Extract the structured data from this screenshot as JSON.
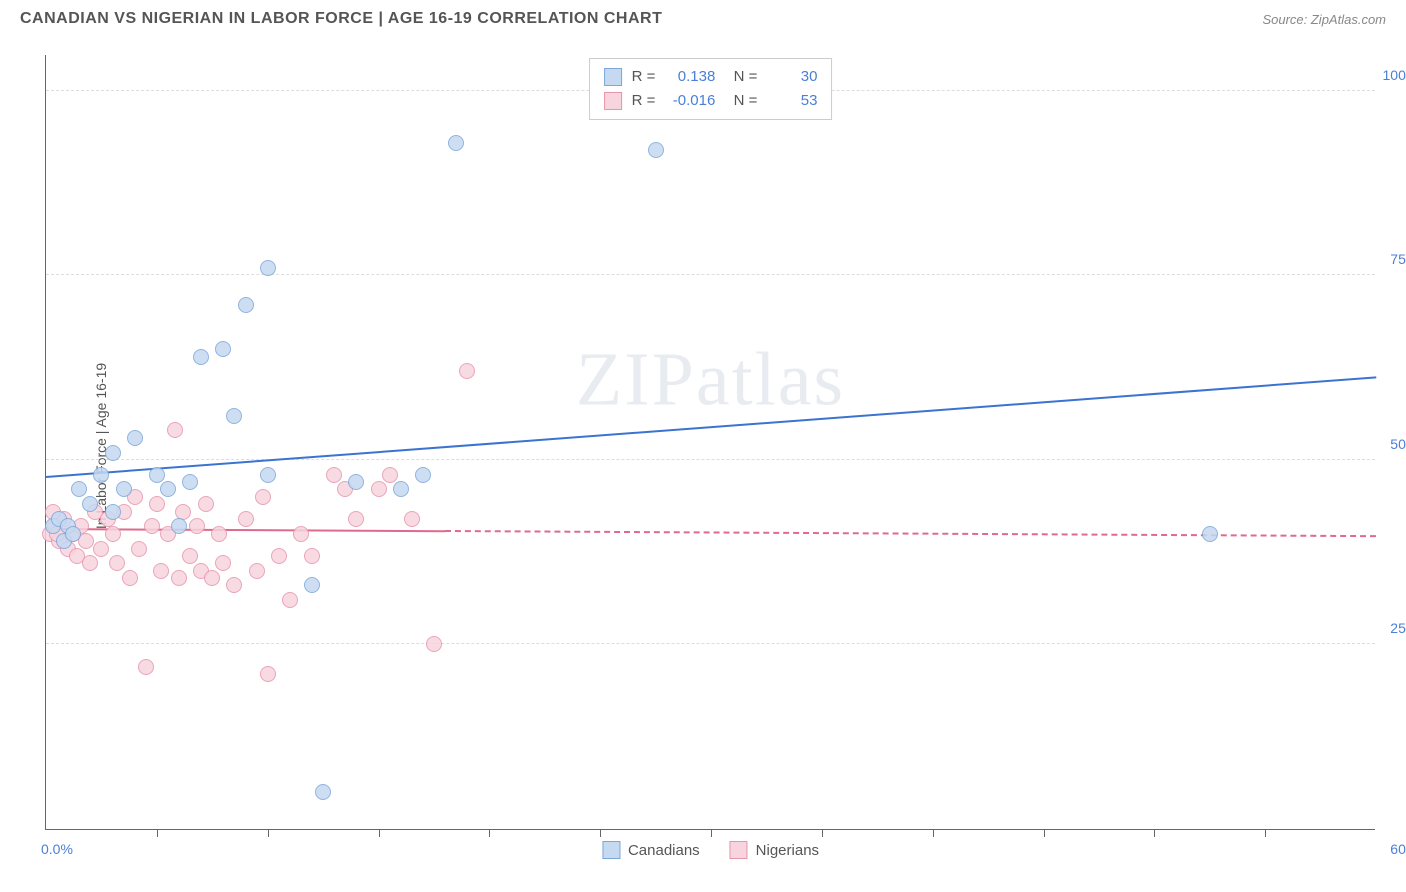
{
  "header": {
    "title": "CANADIAN VS NIGERIAN IN LABOR FORCE | AGE 16-19 CORRELATION CHART",
    "source": "Source: ZipAtlas.com"
  },
  "watermark": "ZIPatlas",
  "chart": {
    "type": "scatter",
    "ylabel": "In Labor Force | Age 16-19",
    "xlim": [
      0,
      60
    ],
    "ylim": [
      0,
      105
    ],
    "xticks": [
      5,
      10,
      15,
      20,
      25,
      30,
      35,
      40,
      45,
      50,
      55
    ],
    "yticks": [
      {
        "v": 25,
        "label": "25.0%"
      },
      {
        "v": 50,
        "label": "50.0%"
      },
      {
        "v": 75,
        "label": "75.0%"
      },
      {
        "v": 100,
        "label": "100.0%"
      }
    ],
    "xaxis_label_left": "0.0%",
    "xaxis_label_right": "60.0%",
    "background_color": "#ffffff",
    "grid_color": "#dddddd",
    "series": [
      {
        "name": "Canadians",
        "fill": "#c5d9f1",
        "stroke": "#7da7db",
        "marker_r": 8,
        "R": "0.138",
        "N": "30",
        "trend": {
          "x0": 0,
          "y0": 47.5,
          "x1": 60,
          "y1": 61,
          "solid_until": 60,
          "color": "#3a74d0"
        },
        "points": [
          {
            "x": 0.3,
            "y": 41
          },
          {
            "x": 0.6,
            "y": 42
          },
          {
            "x": 0.8,
            "y": 39
          },
          {
            "x": 1.0,
            "y": 41
          },
          {
            "x": 1.2,
            "y": 40
          },
          {
            "x": 1.5,
            "y": 46
          },
          {
            "x": 2.0,
            "y": 44
          },
          {
            "x": 2.5,
            "y": 48
          },
          {
            "x": 3.0,
            "y": 51
          },
          {
            "x": 3.5,
            "y": 46
          },
          {
            "x": 4.0,
            "y": 53
          },
          {
            "x": 3.0,
            "y": 43
          },
          {
            "x": 5.0,
            "y": 48
          },
          {
            "x": 5.5,
            "y": 46
          },
          {
            "x": 6.0,
            "y": 41
          },
          {
            "x": 6.5,
            "y": 47
          },
          {
            "x": 7.0,
            "y": 64
          },
          {
            "x": 8.0,
            "y": 65
          },
          {
            "x": 8.5,
            "y": 56
          },
          {
            "x": 9.0,
            "y": 71
          },
          {
            "x": 10.0,
            "y": 76
          },
          {
            "x": 10.0,
            "y": 48
          },
          {
            "x": 12.0,
            "y": 33
          },
          {
            "x": 12.5,
            "y": 5
          },
          {
            "x": 14.0,
            "y": 47
          },
          {
            "x": 16.0,
            "y": 46
          },
          {
            "x": 17.0,
            "y": 48
          },
          {
            "x": 18.5,
            "y": 93
          },
          {
            "x": 27.5,
            "y": 92
          },
          {
            "x": 52.5,
            "y": 40
          }
        ]
      },
      {
        "name": "Nigerians",
        "fill": "#f7d4de",
        "stroke": "#e795ad",
        "marker_r": 8,
        "R": "-0.016",
        "N": "53",
        "trend": {
          "x0": 0,
          "y0": 40.5,
          "x1": 60,
          "y1": 39.5,
          "solid_until": 18,
          "color": "#e06a8d"
        },
        "points": [
          {
            "x": 0.2,
            "y": 40
          },
          {
            "x": 0.4,
            "y": 41
          },
          {
            "x": 0.6,
            "y": 39
          },
          {
            "x": 0.8,
            "y": 42
          },
          {
            "x": 1.0,
            "y": 38
          },
          {
            "x": 1.2,
            "y": 40
          },
          {
            "x": 1.4,
            "y": 37
          },
          {
            "x": 1.6,
            "y": 41
          },
          {
            "x": 1.8,
            "y": 39
          },
          {
            "x": 2.0,
            "y": 36
          },
          {
            "x": 2.2,
            "y": 43
          },
          {
            "x": 2.5,
            "y": 38
          },
          {
            "x": 2.8,
            "y": 42
          },
          {
            "x": 3.0,
            "y": 40
          },
          {
            "x": 3.2,
            "y": 36
          },
          {
            "x": 3.5,
            "y": 43
          },
          {
            "x": 3.8,
            "y": 34
          },
          {
            "x": 4.0,
            "y": 45
          },
          {
            "x": 4.2,
            "y": 38
          },
          {
            "x": 4.5,
            "y": 22
          },
          {
            "x": 4.8,
            "y": 41
          },
          {
            "x": 5.0,
            "y": 44
          },
          {
            "x": 5.2,
            "y": 35
          },
          {
            "x": 5.5,
            "y": 40
          },
          {
            "x": 5.8,
            "y": 54
          },
          {
            "x": 6.0,
            "y": 34
          },
          {
            "x": 6.2,
            "y": 43
          },
          {
            "x": 6.5,
            "y": 37
          },
          {
            "x": 6.8,
            "y": 41
          },
          {
            "x": 7.0,
            "y": 35
          },
          {
            "x": 7.2,
            "y": 44
          },
          {
            "x": 7.5,
            "y": 34
          },
          {
            "x": 7.8,
            "y": 40
          },
          {
            "x": 8.0,
            "y": 36
          },
          {
            "x": 8.5,
            "y": 33
          },
          {
            "x": 9.0,
            "y": 42
          },
          {
            "x": 9.5,
            "y": 35
          },
          {
            "x": 9.8,
            "y": 45
          },
          {
            "x": 10.0,
            "y": 21
          },
          {
            "x": 10.5,
            "y": 37
          },
          {
            "x": 11.0,
            "y": 31
          },
          {
            "x": 11.5,
            "y": 40
          },
          {
            "x": 12.0,
            "y": 37
          },
          {
            "x": 13.0,
            "y": 48
          },
          {
            "x": 13.5,
            "y": 46
          },
          {
            "x": 14.0,
            "y": 42
          },
          {
            "x": 15.0,
            "y": 46
          },
          {
            "x": 15.5,
            "y": 48
          },
          {
            "x": 16.5,
            "y": 42
          },
          {
            "x": 17.5,
            "y": 25
          },
          {
            "x": 19.0,
            "y": 62
          },
          {
            "x": 0.3,
            "y": 43
          },
          {
            "x": 0.5,
            "y": 40
          }
        ]
      }
    ]
  },
  "legend_bottom": [
    {
      "label": "Canadians",
      "fill": "#c5d9f1",
      "stroke": "#7da7db"
    },
    {
      "label": "Nigerians",
      "fill": "#f7d4de",
      "stroke": "#e795ad"
    }
  ]
}
